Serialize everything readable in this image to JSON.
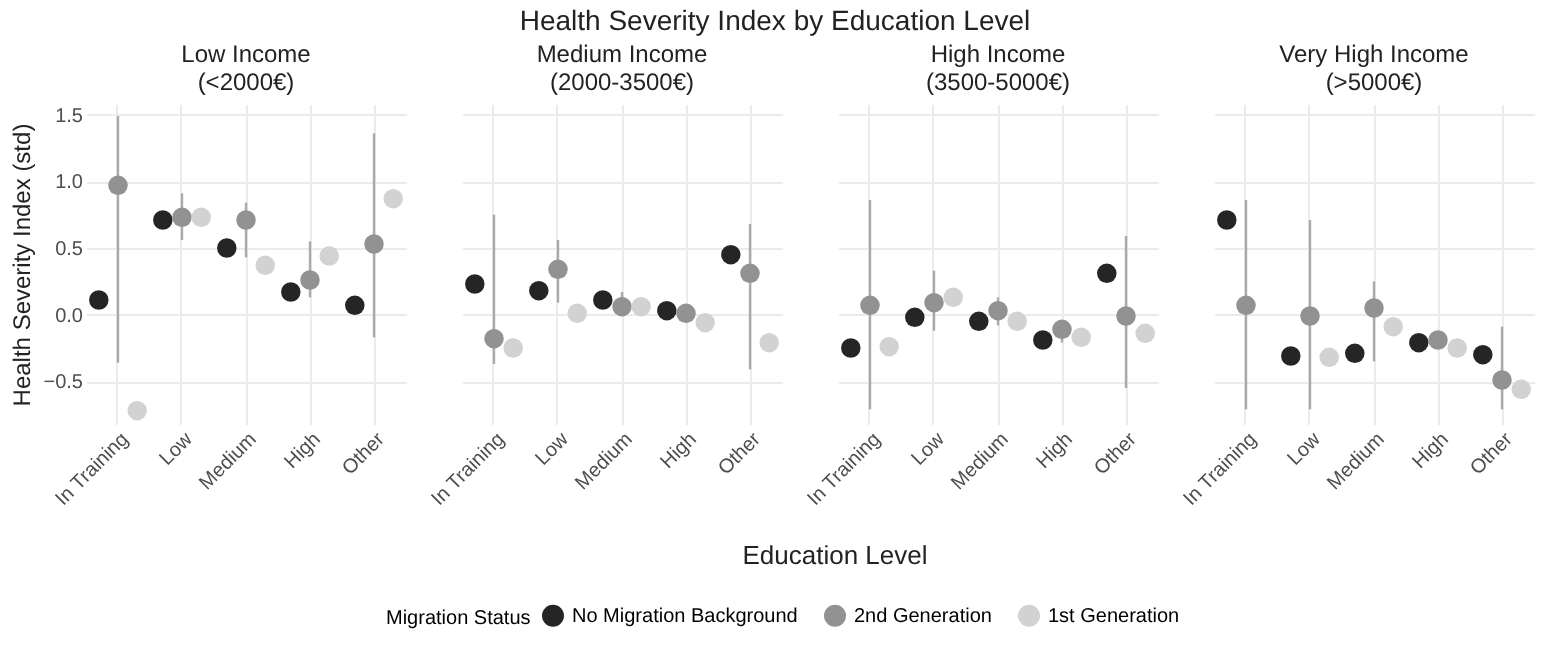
{
  "chart_data": [
    {
      "type": "scatter",
      "annotations": [
        "Health Severity Index by Education Level",
        "Education Level"
      ],
      "subtitle": "Low Income\n(<2000€)",
      "ylabel": "Health Severity Index (std)",
      "legend_title": "Migration Status",
      "legend": "bottom",
      "grid": true,
      "marker": "circle",
      "categories": [
        "In Training",
        "Low",
        "Medium",
        "High",
        "Other"
      ],
      "ylim": [
        -0.82,
        1.58
      ],
      "yticks": [
        -0.5,
        {
          "value": 0,
          "label": "0.0"
        },
        0.5,
        {
          "value": 1,
          "label": "1.0"
        },
        1.5
      ],
      "series": [
        {
          "name": "No Migration Background",
          "color": "#252525",
          "values": [
            0.11,
            0.71,
            0.5,
            0.17,
            0.07
          ]
        },
        {
          "name": "2nd Generation",
          "color": "#929292",
          "values": [
            0.97,
            0.73,
            0.71,
            0.26,
            0.53
          ],
          "errors": [
            [
              -0.36,
              1.49
            ],
            [
              0.56,
              0.91
            ],
            [
              0.43,
              0.84
            ],
            [
              0.13,
              0.55
            ],
            [
              -0.17,
              1.36
            ]
          ]
        },
        {
          "name": "1st Generation",
          "color": "#d2d2d2",
          "values": [
            -0.72,
            0.73,
            0.37,
            0.44,
            0.87
          ]
        }
      ]
    },
    {
      "type": "scatter",
      "subtitle": "Medium Income\n(2000-3500€)",
      "legend": "bottom",
      "grid": true,
      "marker": "circle",
      "tick_labels": "x",
      "categories": [
        "In Training",
        "Low",
        "Medium",
        "High",
        "Other"
      ],
      "ylim": [
        -0.82,
        1.58
      ],
      "yticks": [
        -0.5,
        0.0,
        0.5,
        1.0,
        1.5
      ],
      "series": [
        {
          "name": "No Migration Background",
          "color": "#252525",
          "values": [
            0.23,
            0.18,
            0.11,
            0.03,
            0.45
          ]
        },
        {
          "name": "2nd Generation",
          "color": "#929292",
          "values": [
            -0.18,
            0.34,
            0.06,
            0.01,
            0.31
          ],
          "errors": [
            [
              -0.37,
              0.75
            ],
            [
              0.09,
              0.56
            ],
            [
              -0.01,
              0.17
            ],
            [
              -0.04,
              0.05
            ],
            [
              -0.41,
              0.68
            ]
          ]
        },
        {
          "name": "1st Generation",
          "color": "#d2d2d2",
          "values": [
            -0.25,
            0.01,
            0.06,
            -0.06,
            -0.21
          ]
        }
      ]
    },
    {
      "type": "scatter",
      "subtitle": "High Income\n(3500-5000€)",
      "legend": "bottom",
      "grid": true,
      "marker": "circle",
      "tick_labels": "x",
      "categories": [
        "In Training",
        "Low",
        "Medium",
        "High",
        "Other"
      ],
      "ylim": [
        -0.82,
        1.58
      ],
      "yticks": [
        -0.5,
        0.0,
        0.5,
        1.0,
        1.5
      ],
      "series": [
        {
          "name": "No Migration Background",
          "color": "#252525",
          "values": [
            -0.25,
            -0.02,
            -0.05,
            -0.19,
            0.31
          ]
        },
        {
          "name": "2nd Generation",
          "color": "#929292",
          "values": [
            0.07,
            0.09,
            0.03,
            -0.11,
            -0.01
          ],
          "errors": [
            [
              -0.71,
              0.86
            ],
            [
              -0.12,
              0.33
            ],
            [
              -0.08,
              0.13
            ],
            [
              -0.21,
              -0.04
            ],
            [
              -0.55,
              0.59
            ]
          ]
        },
        {
          "name": "1st Generation",
          "color": "#d2d2d2",
          "values": [
            -0.24,
            0.13,
            -0.05,
            -0.17,
            -0.14
          ]
        }
      ]
    },
    {
      "type": "scatter",
      "subtitle": "Very High Income\n(>5000€)",
      "legend": "bottom",
      "grid": true,
      "marker": "circle",
      "tick_labels": "x",
      "categories": [
        "In Training",
        "Low",
        "Medium",
        "High",
        "Other"
      ],
      "ylim": [
        -0.82,
        1.58
      ],
      "yticks": [
        -0.5,
        0.0,
        0.5,
        1.0,
        1.5
      ],
      "series": [
        {
          "name": "No Migration Background",
          "color": "#252525",
          "values": [
            0.71,
            -0.31,
            -0.29,
            -0.21,
            -0.3
          ]
        },
        {
          "name": "2nd Generation",
          "color": "#929292",
          "values": [
            0.07,
            -0.01,
            0.05,
            -0.19,
            -0.49
          ],
          "errors": [
            [
              -0.71,
              0.86
            ],
            [
              -0.71,
              0.71
            ],
            [
              -0.35,
              0.25
            ],
            [
              -0.25,
              -0.15
            ],
            [
              -0.71,
              -0.09
            ]
          ]
        },
        {
          "name": "1st Generation",
          "color": "#d2d2d2",
          "values": [
            null,
            -0.32,
            -0.09,
            -0.25,
            -0.56
          ]
        }
      ]
    }
  ]
}
